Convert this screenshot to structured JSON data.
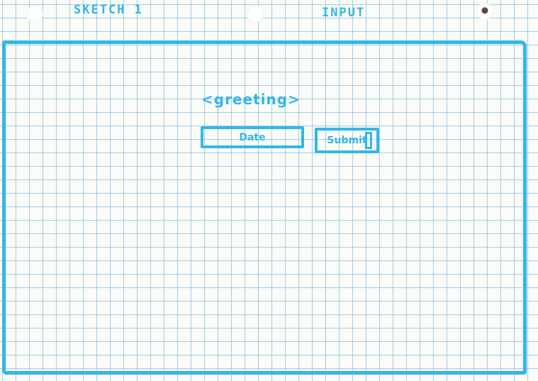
{
  "sketch": {
    "title": "SKETCH 1",
    "label": "INPUT"
  },
  "form": {
    "greeting": "<greeting>",
    "date_placeholder": "Date",
    "submit_label": "Submit"
  },
  "colors": {
    "ink": "#31b7e8",
    "paper": "#fbfbf8",
    "grid": "#5aaad7"
  }
}
